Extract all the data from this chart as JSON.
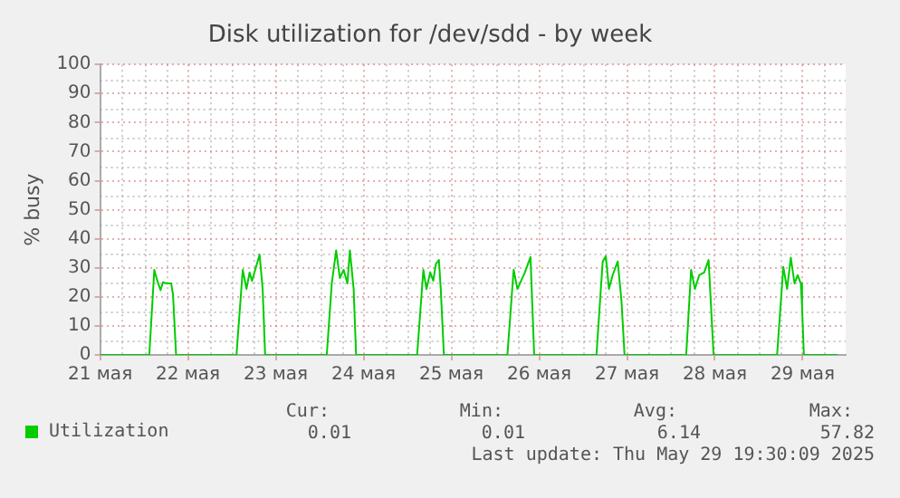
{
  "chart_data": {
    "type": "line",
    "title": "Disk utilization for /dev/sdd - by week",
    "ylabel": "% busy",
    "x": [
      21,
      21.56,
      21.617,
      21.652,
      21.688,
      21.716,
      21.759,
      21.809,
      21.83,
      21.865,
      22.553,
      22.624,
      22.667,
      22.702,
      22.73,
      22.766,
      22.816,
      22.851,
      22.879,
      23.581,
      23.638,
      23.688,
      23.73,
      23.773,
      23.816,
      23.844,
      23.887,
      23.915,
      24.61,
      24.681,
      24.716,
      24.759,
      24.794,
      24.823,
      24.858,
      24.879,
      24.915,
      25.638,
      25.709,
      25.752,
      25.794,
      25.837,
      25.901,
      25.943,
      26.652,
      26.723,
      26.759,
      26.794,
      26.837,
      26.894,
      26.936,
      26.972,
      27.674,
      27.73,
      27.773,
      27.823,
      27.879,
      27.929,
      27.986,
      28.709,
      28.78,
      28.823,
      28.865,
      28.908,
      28.943,
      28.979,
      28.993,
      29.014,
      29.4
    ],
    "series": [
      {
        "name": "Utilization",
        "color": "#00cc00",
        "values": [
          0,
          0,
          29.3,
          25.5,
          22.3,
          25,
          24.6,
          24.6,
          20.8,
          0,
          0,
          29.3,
          22.7,
          28.4,
          25.5,
          29.3,
          34.5,
          22.7,
          0,
          0,
          24.6,
          36,
          26.5,
          29.3,
          24.6,
          36,
          22.7,
          0,
          0,
          29.3,
          22.7,
          28.4,
          25.5,
          31.3,
          32.7,
          22.7,
          0,
          0,
          29.3,
          22.7,
          25.5,
          28.4,
          33.7,
          0,
          0,
          32.2,
          34,
          22.7,
          27.5,
          32.2,
          19,
          0,
          0,
          29.3,
          22.7,
          27.5,
          28.4,
          32.7,
          0,
          0,
          30.3,
          22.7,
          33.5,
          24.6,
          27.5,
          24.6,
          17,
          0,
          0
        ]
      }
    ],
    "xlim": [
      21,
      29.49
    ],
    "xticks": [
      {
        "value": 21,
        "label": "21 мая"
      },
      {
        "value": 22,
        "label": "22 мая"
      },
      {
        "value": 23,
        "label": "23 мая"
      },
      {
        "value": 24,
        "label": "24 мая"
      },
      {
        "value": 25,
        "label": "25 мая"
      },
      {
        "value": 26,
        "label": "26 мая"
      },
      {
        "value": 27,
        "label": "27 мая"
      },
      {
        "value": 28,
        "label": "28 мая"
      },
      {
        "value": 29,
        "label": "29 мая"
      }
    ],
    "ylim": [
      0,
      100
    ],
    "yticks": [
      0,
      10,
      20,
      30,
      40,
      50,
      60,
      70,
      80,
      90,
      100
    ],
    "grid": true,
    "legend": "bottom left",
    "annotations": [
      "Cur:",
      "0.01",
      "Min:",
      "0.01",
      "Avg:",
      "6.14",
      "Max:",
      "57.82",
      "Last update: Thu May 29 19:30:09 2025"
    ]
  }
}
